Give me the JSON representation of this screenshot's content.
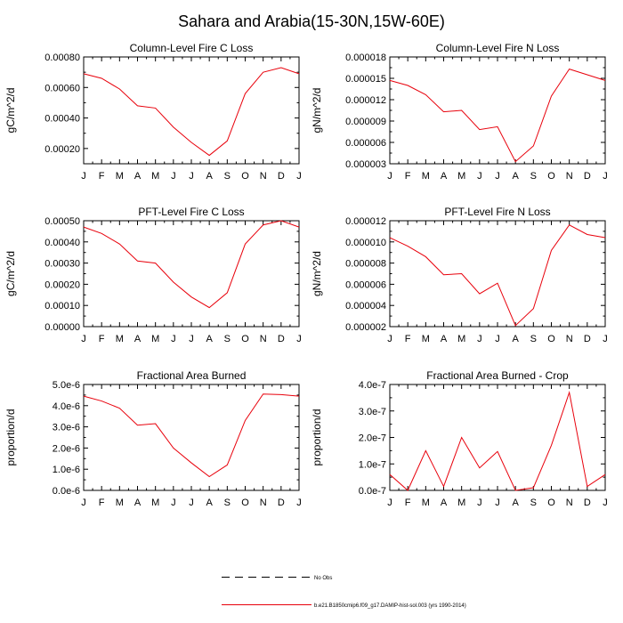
{
  "figure_title": "Sahara and Arabia(15-30N,15W-60E)",
  "months": [
    "J",
    "F",
    "M",
    "A",
    "M",
    "J",
    "J",
    "A",
    "S",
    "O",
    "N",
    "D",
    "J"
  ],
  "legend": {
    "obs_label": "No Obs",
    "model_label": "b.e21.B1850cmip6.f09_g17.DAMIP-hist-sol.003 (yrs 1990-2014)"
  },
  "colors": {
    "model": "#e8000b",
    "axes": "#000000",
    "obs": "#000000"
  },
  "chart_data": [
    {
      "type": "line",
      "title": "Column-Level Fire C Loss",
      "ylabel": "gC/m^2/d",
      "ylim": [
        0.0001,
        0.0008
      ],
      "yticks": [
        "0.00020",
        "0.00040",
        "0.00060",
        "0.00080"
      ],
      "ytick_values": [
        0.0002,
        0.0004,
        0.0006,
        0.0008
      ],
      "x": [
        "J",
        "F",
        "M",
        "A",
        "M",
        "J",
        "J",
        "A",
        "S",
        "O",
        "N",
        "D",
        "J"
      ],
      "series": [
        {
          "values": [
            0.00069,
            0.00066,
            0.00059,
            0.00048,
            0.000465,
            0.00034,
            0.00024,
            0.000155,
            0.00025,
            0.00056,
            0.0007,
            0.00073,
            0.00069
          ]
        }
      ]
    },
    {
      "type": "line",
      "title": "Column-Level Fire N Loss",
      "ylabel": "gN/m^2/d",
      "ylim": [
        3e-06,
        1.8e-05
      ],
      "yticks": [
        "0.000003",
        "0.000006",
        "0.000009",
        "0.000012",
        "0.000015",
        "0.000018"
      ],
      "ytick_values": [
        3e-06,
        6e-06,
        9e-06,
        1.2e-05,
        1.5e-05,
        1.8e-05
      ],
      "x": [
        "J",
        "F",
        "M",
        "A",
        "M",
        "J",
        "J",
        "A",
        "S",
        "O",
        "N",
        "D",
        "J"
      ],
      "series": [
        {
          "values": [
            1.47e-05,
            1.4e-05,
            1.27e-05,
            1.03e-05,
            1.05e-05,
            7.8e-06,
            8.2e-06,
            3.3e-06,
            5.5e-06,
            1.25e-05,
            1.63e-05,
            1.55e-05,
            1.47e-05
          ]
        }
      ]
    },
    {
      "type": "line",
      "title": "PFT-Level Fire C Loss",
      "ylabel": "gC/m^2/d",
      "ylim": [
        0.0,
        0.0005
      ],
      "yticks": [
        "0.00000",
        "0.00010",
        "0.00020",
        "0.00030",
        "0.00040",
        "0.00050"
      ],
      "ytick_values": [
        0.0,
        0.0001,
        0.0002,
        0.0003,
        0.0004,
        0.0005
      ],
      "x": [
        "J",
        "F",
        "M",
        "A",
        "M",
        "J",
        "J",
        "A",
        "S",
        "O",
        "N",
        "D",
        "J"
      ],
      "series": [
        {
          "values": [
            0.00047,
            0.00044,
            0.00039,
            0.00031,
            0.0003,
            0.00021,
            0.00014,
            9e-05,
            0.00016,
            0.00039,
            0.00048,
            0.0005,
            0.00047
          ]
        }
      ]
    },
    {
      "type": "line",
      "title": "PFT-Level Fire N Loss",
      "ylabel": "gN/m^2/d",
      "ylim": [
        2e-06,
        1.2e-05
      ],
      "yticks": [
        "0.000002",
        "0.000004",
        "0.000006",
        "0.000008",
        "0.000010",
        "0.000012"
      ],
      "ytick_values": [
        2e-06,
        4e-06,
        6e-06,
        8e-06,
        1e-05,
        1.2e-05
      ],
      "x": [
        "J",
        "F",
        "M",
        "A",
        "M",
        "J",
        "J",
        "A",
        "S",
        "O",
        "N",
        "D",
        "J"
      ],
      "series": [
        {
          "values": [
            1.04e-05,
            9.6e-06,
            8.6e-06,
            6.9e-06,
            7e-06,
            5.1e-06,
            6.1e-06,
            2.1e-06,
            3.7e-06,
            9.2e-06,
            1.16e-05,
            1.07e-05,
            1.04e-05
          ]
        }
      ]
    },
    {
      "type": "line",
      "title": "Fractional Area Burned",
      "ylabel": "proportion/d",
      "ylim": [
        0.0,
        5e-06
      ],
      "yticks": [
        "0.0e-6",
        "1.0e-6",
        "2.0e-6",
        "3.0e-6",
        "4.0e-6",
        "5.0e-6"
      ],
      "ytick_values": [
        0.0,
        1e-06,
        2e-06,
        3e-06,
        4e-06,
        5e-06
      ],
      "x": [
        "J",
        "F",
        "M",
        "A",
        "M",
        "J",
        "J",
        "A",
        "S",
        "O",
        "N",
        "D",
        "J"
      ],
      "series": [
        {
          "values": [
            4.45e-06,
            4.22e-06,
            3.88e-06,
            3.08e-06,
            3.15e-06,
            2e-06,
            1.3e-06,
            6.5e-07,
            1.2e-06,
            3.3e-06,
            4.55e-06,
            4.52e-06,
            4.45e-06
          ]
        }
      ]
    },
    {
      "type": "line",
      "title": "Fractional Area Burned - Crop",
      "ylabel": "proportion/d",
      "ylim": [
        0.0,
        4e-07
      ],
      "yticks": [
        "0.0e-7",
        "1.0e-7",
        "2.0e-7",
        "3.0e-7",
        "4.0e-7"
      ],
      "ytick_values": [
        0.0,
        1e-07,
        2e-07,
        3e-07,
        4e-07
      ],
      "x": [
        "J",
        "F",
        "M",
        "A",
        "M",
        "J",
        "J",
        "A",
        "S",
        "O",
        "N",
        "D",
        "J"
      ],
      "series": [
        {
          "values": [
            6e-08,
            0.0,
            1.5e-07,
            1.5e-08,
            2e-07,
            8.5e-08,
            1.47e-07,
            0.0,
            1e-08,
            1.7e-07,
            3.7e-07,
            1.5e-08,
            6e-08
          ]
        }
      ]
    }
  ]
}
